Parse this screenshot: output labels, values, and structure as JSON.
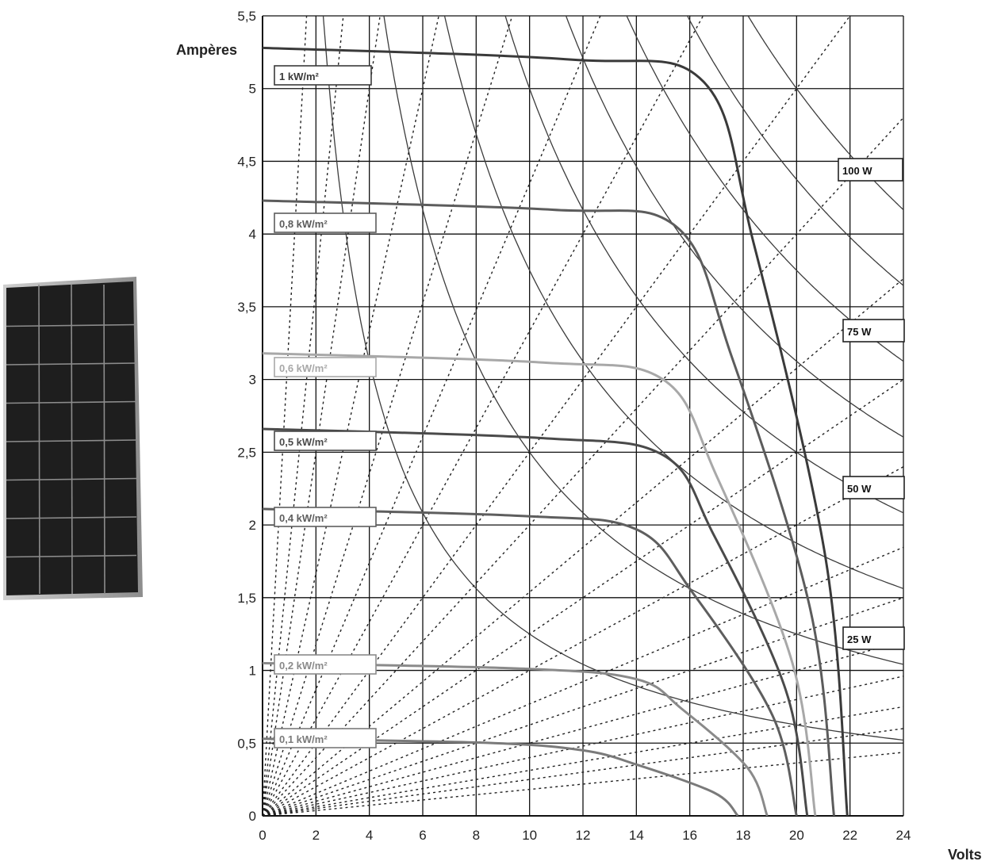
{
  "chart_data": {
    "type": "line",
    "ylabel": "Ampères",
    "xlabel": "Volts",
    "xlim": [
      0,
      24
    ],
    "ylim": [
      0,
      5.5
    ],
    "x_ticks": [
      "0",
      "2",
      "4",
      "6",
      "8",
      "10",
      "12",
      "14",
      "16",
      "18",
      "20",
      "22",
      "24"
    ],
    "y_ticks": [
      "0",
      "0,5",
      "1",
      "1,5",
      "2",
      "2,5",
      "3",
      "3,5",
      "4",
      "4,5",
      "5",
      "5,5"
    ],
    "grid": true,
    "series": [
      {
        "name": "1 kW/m²",
        "isc": 5.28,
        "knee_v": 16.5,
        "knee_i": 5.05,
        "voc": 21.9,
        "color": "#3a3a3a"
      },
      {
        "name": "0,8 kW/m²",
        "isc": 4.23,
        "knee_v": 15.5,
        "knee_i": 4.05,
        "voc": 21.4,
        "color": "#5c5c5c"
      },
      {
        "name": "0,6 kW/m²",
        "isc": 3.18,
        "knee_v": 15.0,
        "knee_i": 3.0,
        "voc": 20.7,
        "color": "#a8a8a8"
      },
      {
        "name": "0,5 kW/m²",
        "isc": 2.66,
        "knee_v": 15.0,
        "knee_i": 2.48,
        "voc": 20.4,
        "color": "#4a4a4a"
      },
      {
        "name": "0,4 kW/m²",
        "isc": 2.11,
        "knee_v": 14.0,
        "knee_i": 1.97,
        "voc": 20.0,
        "color": "#5e5e5e"
      },
      {
        "name": "0,2 kW/m²",
        "isc": 1.05,
        "knee_v": 14.0,
        "knee_i": 0.94,
        "voc": 18.9,
        "color": "#8a8a8a"
      },
      {
        "name": "0,1 kW/m²",
        "isc": 0.53,
        "knee_v": 12.0,
        "knee_i": 0.45,
        "voc": 17.8,
        "color": "#7a7a7a"
      }
    ],
    "power_curves": [
      {
        "label": "25 W",
        "watts": 25
      },
      {
        "label": "50 W",
        "watts": 50
      },
      {
        "label": "75 W",
        "watts": 75
      },
      {
        "label": "100 W",
        "watts": 100
      }
    ],
    "unlabeled_power_curves": [
      12.5,
      37.5,
      62.5,
      87.5
    ],
    "resistance_lines_ohm": [
      0.3,
      0.55,
      0.8,
      1.2,
      1.7,
      2.3,
      3.0,
      4.0,
      5.0,
      6.5,
      8.0,
      10.0,
      13.0,
      16.0,
      20.0,
      25.0,
      32.0,
      40.0,
      55.0
    ]
  },
  "image": {
    "description": "solar panel photo"
  }
}
